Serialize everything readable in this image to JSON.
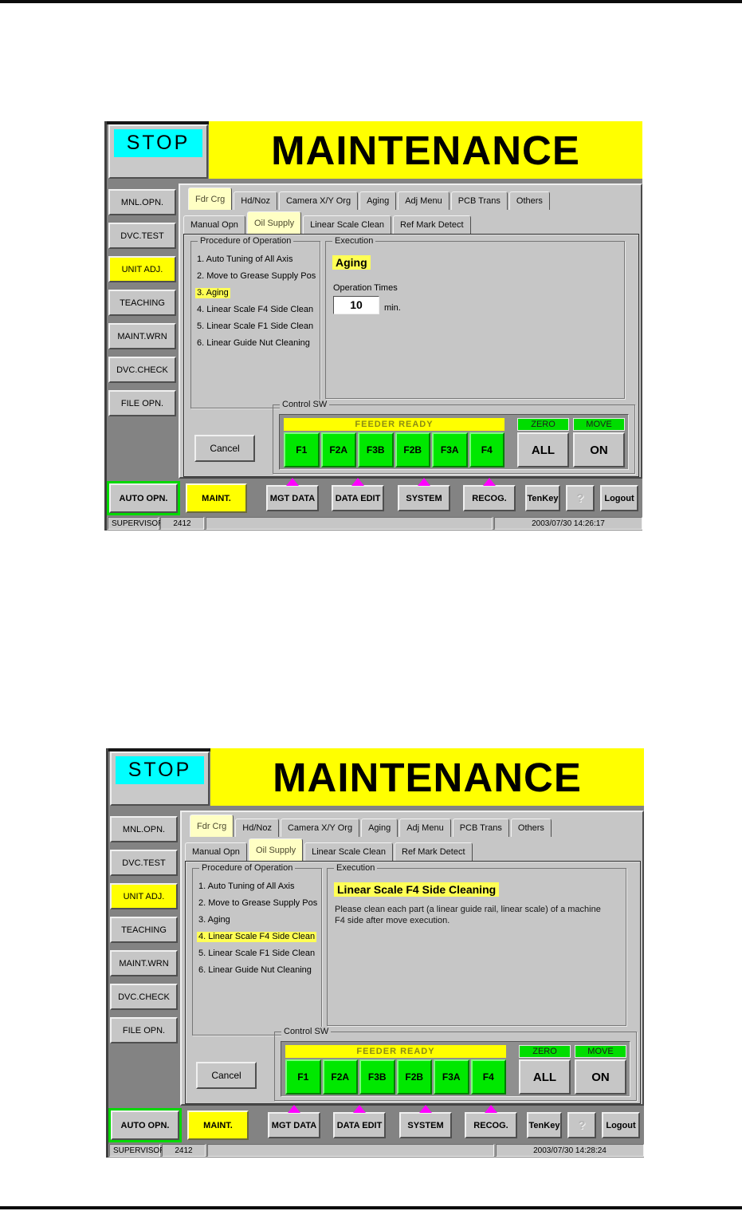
{
  "colors": {
    "banner_yellow": "#ffff00",
    "stop_cyan": "#00ffff",
    "feeder_green": "#00e800",
    "arrow_magenta": "#ff00ff",
    "highlight_yellow": "#ffff55",
    "tab_selected_yellow": "#ffffc4"
  },
  "screens": [
    {
      "stop_label": "STOP",
      "title": "MAINTENANCE",
      "sidebar": [
        {
          "label": "MNL.OPN."
        },
        {
          "label": "DVC.TEST"
        },
        {
          "label": "UNIT ADJ.",
          "active": true
        },
        {
          "label": "TEACHING"
        },
        {
          "label": "MAINT.WRN"
        },
        {
          "label": "DVC.CHECK"
        },
        {
          "label": "FILE OPN."
        }
      ],
      "tabs_top": [
        {
          "label": "Fdr Crg",
          "selected": true
        },
        {
          "label": "Hd/Noz"
        },
        {
          "label": "Camera X/Y Org"
        },
        {
          "label": "Aging"
        },
        {
          "label": "Adj Menu"
        },
        {
          "label": "PCB Trans"
        },
        {
          "label": "Others"
        }
      ],
      "tabs_sub": [
        {
          "label": "Manual Opn"
        },
        {
          "label": "Oil Supply",
          "selected": true
        },
        {
          "label": "Linear Scale Clean"
        },
        {
          "label": "Ref Mark Detect"
        }
      ],
      "procedure": {
        "title": "Procedure of Operation",
        "items": [
          {
            "label": "1. Auto Tuning of All Axis"
          },
          {
            "label": "2. Move to Grease Supply Pos"
          },
          {
            "label": "3. Aging",
            "highlighted": true
          },
          {
            "label": "4. Linear Scale F4 Side Clean"
          },
          {
            "label": "5. Linear Scale F1 Side Clean"
          },
          {
            "label": "6. Linear Guide Nut Cleaning"
          }
        ]
      },
      "execution": {
        "title": "Execution",
        "heading": "Aging",
        "operation_times_label": "Operation Times",
        "operation_times_value": "10",
        "operation_times_unit": "min."
      },
      "control": {
        "title": "Control SW",
        "feeder_ready_label": "FEEDER READY",
        "feeder_buttons": [
          "F1",
          "F2A",
          "F3B",
          "F2B",
          "F3A",
          "F4"
        ],
        "zero_label": "ZERO",
        "zero_button": "ALL",
        "move_label": "MOVE",
        "move_button": "ON"
      },
      "cancel_label": "Cancel",
      "toolbar": [
        {
          "label": "AUTO OPN.",
          "green": true
        },
        {
          "label": "MAINT.",
          "yellow": true
        },
        {
          "label": "MGT DATA",
          "arrow": true
        },
        {
          "label": "DATA EDIT",
          "arrow": true
        },
        {
          "label": "SYSTEM",
          "arrow": true
        },
        {
          "label": "RECOG.",
          "arrow": true
        },
        {
          "label": "TenKey"
        },
        {
          "label": "?",
          "dim": true
        },
        {
          "label": "Logout"
        }
      ],
      "status": {
        "user": "SUPERVISOR",
        "code": "2412",
        "timestamp": "2003/07/30 14:26:17"
      }
    },
    {
      "stop_label": "STOP",
      "title": "MAINTENANCE",
      "sidebar": [
        {
          "label": "MNL.OPN."
        },
        {
          "label": "DVC.TEST"
        },
        {
          "label": "UNIT ADJ.",
          "active": true
        },
        {
          "label": "TEACHING"
        },
        {
          "label": "MAINT.WRN"
        },
        {
          "label": "DVC.CHECK"
        },
        {
          "label": "FILE OPN."
        }
      ],
      "tabs_top": [
        {
          "label": "Fdr Crg",
          "selected": true
        },
        {
          "label": "Hd/Noz"
        },
        {
          "label": "Camera X/Y Org"
        },
        {
          "label": "Aging"
        },
        {
          "label": "Adj Menu"
        },
        {
          "label": "PCB Trans"
        },
        {
          "label": "Others"
        }
      ],
      "tabs_sub": [
        {
          "label": "Manual Opn"
        },
        {
          "label": "Oil Supply",
          "selected": true
        },
        {
          "label": "Linear Scale Clean"
        },
        {
          "label": "Ref Mark Detect"
        }
      ],
      "procedure": {
        "title": "Procedure of Operation",
        "items": [
          {
            "label": "1. Auto Tuning of All Axis"
          },
          {
            "label": "2. Move to Grease Supply Pos"
          },
          {
            "label": "3. Aging"
          },
          {
            "label": "4. Linear Scale F4 Side Clean",
            "highlighted": true
          },
          {
            "label": "5. Linear Scale F1 Side Clean"
          },
          {
            "label": "6. Linear Guide Nut Cleaning"
          }
        ]
      },
      "execution": {
        "title": "Execution",
        "heading": "Linear Scale F4 Side Cleaning",
        "description": "Please clean each part (a linear guide rail, linear scale) of a machine F4 side after move execution."
      },
      "control": {
        "title": "Control SW",
        "feeder_ready_label": "FEEDER READY",
        "feeder_buttons": [
          "F1",
          "F2A",
          "F3B",
          "F2B",
          "F3A",
          "F4"
        ],
        "zero_label": "ZERO",
        "zero_button": "ALL",
        "move_label": "MOVE",
        "move_button": "ON"
      },
      "cancel_label": "Cancel",
      "toolbar": [
        {
          "label": "AUTO OPN.",
          "green": true
        },
        {
          "label": "MAINT.",
          "yellow": true
        },
        {
          "label": "MGT DATA",
          "arrow": true
        },
        {
          "label": "DATA EDIT",
          "arrow": true
        },
        {
          "label": "SYSTEM",
          "arrow": true
        },
        {
          "label": "RECOG.",
          "arrow": true
        },
        {
          "label": "TenKey"
        },
        {
          "label": "?",
          "dim": true
        },
        {
          "label": "Logout"
        }
      ],
      "status": {
        "user": "SUPERVISOR",
        "code": "2412",
        "timestamp": "2003/07/30 14:28:24"
      }
    }
  ]
}
